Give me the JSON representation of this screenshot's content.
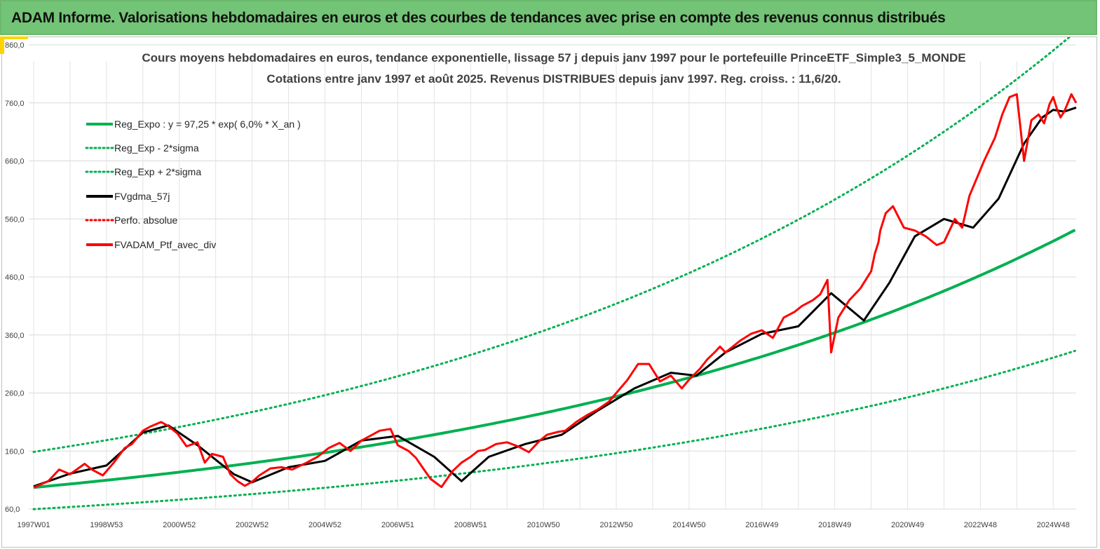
{
  "banner": {
    "title": "ADAM Informe. Valorisations hebdomadaires en euros et des courbes de tendances avec prise en compte des revenus connus distribués"
  },
  "colors": {
    "banner_bg": "#73c476",
    "regression": "#00b050",
    "smoothed": "#000000",
    "portfolio": "#ff0000",
    "accent": "#ffd400"
  },
  "chart_data": {
    "type": "line",
    "title": "Cours moyens hebdomadaires  en euros, tendance exponentielle, lissage 57 j depuis janv 1997 pour le portefeuille PrinceETF_Simple3_5_MONDE",
    "subtitle": "Cotations  entre janv 1997 et août  2025. Revenus DISTRIBUES depuis janv 1997. Reg. croiss. : 11,6/20.",
    "xlabel": "",
    "ylabel": "",
    "x_range": [
      1997.0,
      2025.63
    ],
    "ylim": [
      60,
      880
    ],
    "y_ticks": [
      "60,0",
      "160,0",
      "260,0",
      "360,0",
      "460,0",
      "560,0",
      "660,0",
      "760,0",
      "860,0"
    ],
    "y_tick_values": [
      60,
      160,
      260,
      360,
      460,
      560,
      660,
      760,
      860
    ],
    "x_tick_labels": [
      "1997W01",
      "1998W53",
      "2000W52",
      "2002W52",
      "2004W52",
      "2006W51",
      "2008W51",
      "2010W50",
      "2012W50",
      "2014W50",
      "2016W49",
      "2018W49",
      "2020W49",
      "2022W48",
      "2024W48"
    ],
    "x_tick_years": [
      1997.0,
      1999.0,
      2001.0,
      2003.0,
      2005.0,
      2007.0,
      2009.0,
      2011.0,
      2013.0,
      2015.0,
      2017.0,
      2019.0,
      2021.0,
      2023.0,
      2025.0
    ],
    "grid": true,
    "legend_position": "top-left",
    "legend": [
      {
        "name": "Reg_Expo : y = 97,25 * exp( 6,0% *  X_an )",
        "style": "solid-green"
      },
      {
        "name": "Reg_Exp - 2*sigma",
        "style": "dotted-green"
      },
      {
        "name": "Reg_Exp + 2*sigma",
        "style": "dotted-green"
      },
      {
        "name": "FVgdma_57j",
        "style": "solid-black"
      },
      {
        "name": "Perfo. absolue",
        "style": "dotted-red"
      },
      {
        "name": "FVADAM_Ptf_avec_div",
        "style": "solid-red"
      }
    ],
    "regression": {
      "a": 97.25,
      "rate": 0.06,
      "lower_factor": 0.615,
      "upper_factor": 1.63
    },
    "series": [
      {
        "name": "FVADAM_Ptf_avec_div",
        "x": [
          1997.0,
          1997.4,
          1997.7,
          1998.0,
          1998.4,
          1998.6,
          1998.9,
          1999.2,
          1999.5,
          1999.7,
          2000.0,
          2000.2,
          2000.5,
          2000.7,
          2000.95,
          2001.2,
          2001.5,
          2001.7,
          2001.9,
          2002.2,
          2002.4,
          2002.6,
          2002.8,
          2003.0,
          2003.2,
          2003.5,
          2003.8,
          2004.1,
          2004.5,
          2004.8,
          2005.1,
          2005.4,
          2005.7,
          2006.0,
          2006.3,
          2006.5,
          2006.8,
          2007.0,
          2007.3,
          2007.5,
          2007.7,
          2007.9,
          2008.2,
          2008.5,
          2008.75,
          2009.0,
          2009.2,
          2009.4,
          2009.7,
          2010.0,
          2010.3,
          2010.6,
          2010.9,
          2011.1,
          2011.4,
          2011.6,
          2011.9,
          2012.2,
          2012.5,
          2012.8,
          2013.0,
          2013.3,
          2013.6,
          2013.9,
          2014.2,
          2014.5,
          2014.8,
          2015.0,
          2015.3,
          2015.5,
          2015.7,
          2015.85,
          2016.0,
          2016.1,
          2016.4,
          2016.7,
          2017.0,
          2017.3,
          2017.6,
          2017.9,
          2018.1,
          2018.4,
          2018.6,
          2018.8,
          2018.9,
          2019.1,
          2019.4,
          2019.7,
          2020.0,
          2020.1,
          2020.2,
          2020.25,
          2020.4,
          2020.6,
          2020.9,
          2021.2,
          2021.5,
          2021.8,
          2022.0,
          2022.15,
          2022.3,
          2022.5,
          2022.7,
          2022.9,
          2023.1,
          2023.4,
          2023.6,
          2023.8,
          2024.0,
          2024.2,
          2024.4,
          2024.6,
          2024.75,
          2024.9,
          2025.0,
          2025.1,
          2025.2,
          2025.3,
          2025.4,
          2025.5,
          2025.63
        ],
        "values": [
          97,
          108,
          128,
          120,
          138,
          128,
          118,
          140,
          165,
          172,
          195,
          202,
          210,
          203,
          190,
          168,
          175,
          140,
          155,
          150,
          120,
          108,
          100,
          107,
          118,
          130,
          132,
          128,
          140,
          150,
          165,
          174,
          160,
          178,
          188,
          195,
          198,
          170,
          160,
          148,
          130,
          112,
          98,
          125,
          140,
          150,
          160,
          162,
          172,
          175,
          168,
          158,
          178,
          188,
          193,
          195,
          210,
          222,
          232,
          245,
          260,
          282,
          310,
          310,
          280,
          290,
          268,
          283,
          302,
          318,
          330,
          340,
          330,
          335,
          350,
          362,
          368,
          355,
          390,
          400,
          410,
          420,
          430,
          455,
          330,
          390,
          420,
          440,
          470,
          500,
          520,
          540,
          570,
          582,
          545,
          540,
          530,
          515,
          520,
          540,
          560,
          545,
          600,
          630,
          660,
          700,
          740,
          770,
          775,
          660,
          730,
          740,
          725,
          758,
          770,
          750,
          735,
          745,
          760,
          775,
          760
        ]
      },
      {
        "name": "FVgdma_57j",
        "x": [
          1997.0,
          1998.0,
          1999.0,
          2000.0,
          2000.7,
          2001.5,
          2002.5,
          2003.0,
          2004.0,
          2005.0,
          2006.0,
          2007.0,
          2008.0,
          2008.75,
          2009.5,
          2010.5,
          2011.5,
          2012.5,
          2013.5,
          2014.5,
          2015.2,
          2016.0,
          2017.0,
          2018.0,
          2018.9,
          2019.8,
          2020.5,
          2021.2,
          2022.0,
          2022.8,
          2023.5,
          2024.2,
          2024.7,
          2025.0,
          2025.3,
          2025.63
        ],
        "values": [
          99,
          121,
          135,
          192,
          204,
          170,
          120,
          106,
          132,
          143,
          178,
          186,
          150,
          108,
          150,
          172,
          188,
          230,
          268,
          295,
          290,
          330,
          362,
          375,
          432,
          385,
          450,
          530,
          560,
          545,
          595,
          690,
          735,
          748,
          745,
          752
        ]
      }
    ]
  }
}
